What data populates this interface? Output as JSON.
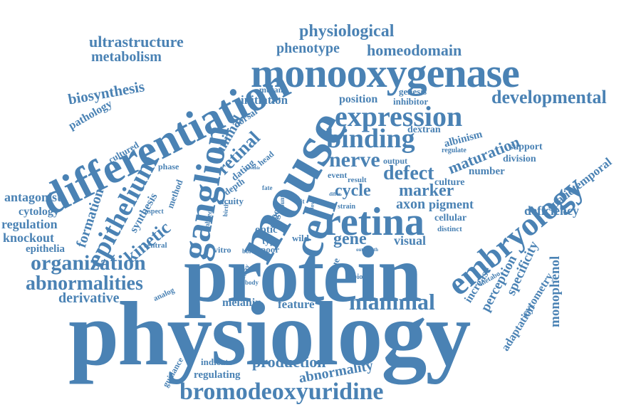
{
  "color": "#4a82b4",
  "words": [
    {
      "text": "physiology"
    },
    {
      "text": "protein"
    },
    {
      "text": "monooxygenase"
    },
    {
      "text": "differentiation"
    },
    {
      "text": "mouse"
    },
    {
      "text": "cell"
    },
    {
      "text": "retina"
    },
    {
      "text": "ganglion"
    },
    {
      "text": "embryology"
    },
    {
      "text": "expression"
    },
    {
      "text": "binding"
    },
    {
      "text": "epithelium"
    },
    {
      "text": "bromodeoxyuridine"
    },
    {
      "text": "organization"
    },
    {
      "text": "abnormalities"
    },
    {
      "text": "mammal"
    },
    {
      "text": "developmental"
    },
    {
      "text": "physiological"
    },
    {
      "text": "ultrastructure"
    },
    {
      "text": "homeodomain"
    },
    {
      "text": "phenotype"
    },
    {
      "text": "metabolism"
    },
    {
      "text": "biosynthesis"
    },
    {
      "text": "pathology"
    },
    {
      "text": "nerve"
    },
    {
      "text": "defect"
    },
    {
      "text": "cycle"
    },
    {
      "text": "marker"
    },
    {
      "text": "kinetic"
    },
    {
      "text": "formation"
    },
    {
      "text": "retinal"
    },
    {
      "text": "animal"
    },
    {
      "text": "production"
    },
    {
      "text": "abnormality"
    },
    {
      "text": "derivative"
    },
    {
      "text": "antagonist"
    },
    {
      "text": "regulation"
    },
    {
      "text": "knockout"
    },
    {
      "text": "epithelia"
    },
    {
      "text": "cytology"
    },
    {
      "text": "maturation"
    },
    {
      "text": "spatiotemporal"
    },
    {
      "text": "deficiency"
    },
    {
      "text": "monophenol"
    },
    {
      "text": "specificity"
    },
    {
      "text": "perception"
    },
    {
      "text": "increase"
    },
    {
      "text": "cytometry"
    },
    {
      "text": "adaptation"
    },
    {
      "text": "axon"
    },
    {
      "text": "pigment"
    },
    {
      "text": "gene"
    },
    {
      "text": "visual"
    },
    {
      "text": "melanin"
    },
    {
      "text": "feature"
    },
    {
      "text": "regulating"
    },
    {
      "text": "indicate"
    },
    {
      "text": "guidance"
    },
    {
      "text": "initiation"
    },
    {
      "text": "position"
    },
    {
      "text": "inhibitor"
    },
    {
      "text": "genesis"
    },
    {
      "text": "mutant"
    },
    {
      "text": "dextran"
    },
    {
      "text": "albinism"
    },
    {
      "text": "regulate"
    },
    {
      "text": "support"
    },
    {
      "text": "division"
    },
    {
      "text": "number"
    },
    {
      "text": "culture"
    },
    {
      "text": "cellular"
    },
    {
      "text": "distinct"
    },
    {
      "text": "synthesis"
    },
    {
      "text": "cultured"
    },
    {
      "text": "method"
    },
    {
      "text": "phase"
    },
    {
      "text": "dorsal"
    },
    {
      "text": "dating"
    },
    {
      "text": "head"
    },
    {
      "text": "depth"
    },
    {
      "text": "acuity"
    },
    {
      "text": "output"
    },
    {
      "text": "event"
    },
    {
      "text": "result"
    },
    {
      "text": "optic"
    },
    {
      "text": "type"
    },
    {
      "text": "poor"
    },
    {
      "text": "born"
    },
    {
      "text": "vitro"
    },
    {
      "text": "wild"
    },
    {
      "text": "tissue"
    },
    {
      "text": "neuron"
    },
    {
      "text": "biotin"
    },
    {
      "text": "strain"
    },
    {
      "text": "ventral"
    },
    {
      "text": "analog"
    },
    {
      "text": "aspect"
    },
    {
      "text": "inbred"
    },
    {
      "text": "birth"
    },
    {
      "text": "fiber"
    },
    {
      "text": "usgo"
    },
    {
      "text": "count"
    },
    {
      "text": "slit"
    },
    {
      "text": "flow"
    },
    {
      "text": "delay"
    },
    {
      "text": "body"
    },
    {
      "text": "metabo"
    },
    {
      "text": "outgrowth"
    },
    {
      "text": "fate"
    },
    {
      "text": "possible"
    },
    {
      "text": "differ"
    }
  ]
}
